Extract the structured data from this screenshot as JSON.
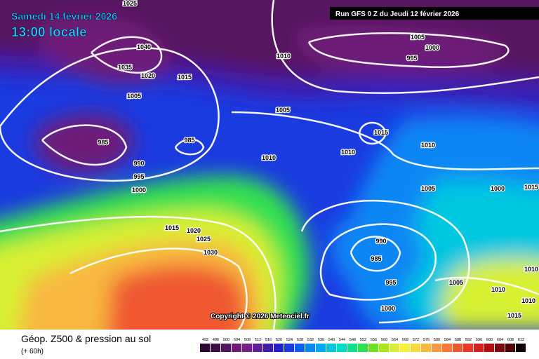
{
  "header": {
    "date": "Samedi 14 février 2026",
    "time": "13:00 locale",
    "run": "Run GFS 0 Z du Jeudi 12 février 2026"
  },
  "map": {
    "isobar_labels": [
      1025,
      1040,
      1035,
      1020,
      1015,
      1005,
      1010,
      1005,
      1000,
      995,
      1005,
      1015,
      1010,
      1010,
      985,
      985,
      1010,
      990,
      995,
      1000,
      1005,
      1000,
      1015,
      1020,
      1025,
      1030,
      990,
      985,
      995,
      1005,
      1010,
      1000,
      1010,
      1010,
      1015,
      1015
    ]
  },
  "copyright": "Copyright © 2026 Meteociel.fr",
  "footer": {
    "title": "Géop. Z500 & pression au sol",
    "lead": "(+ 60h)"
  },
  "legend": {
    "values": [
      492,
      496,
      500,
      504,
      508,
      512,
      516,
      520,
      524,
      528,
      532,
      536,
      540,
      544,
      548,
      552,
      556,
      560,
      564,
      568,
      572,
      576,
      580,
      584,
      588,
      592,
      596,
      600,
      604,
      608,
      612
    ],
    "colors": [
      "#2a0a2e",
      "#3d0f45",
      "#55145e",
      "#6e1a78",
      "#7a1f8a",
      "#5b1e9a",
      "#3c1fb0",
      "#2222c8",
      "#1a3be0",
      "#1060f0",
      "#0a86f5",
      "#00a8f0",
      "#00c8e0",
      "#00dcc0",
      "#10e090",
      "#30e050",
      "#70e020",
      "#a8e820",
      "#d8f030",
      "#f8f040",
      "#f8d840",
      "#f8b840",
      "#f89840",
      "#f87838",
      "#f05830",
      "#e83828",
      "#d82020",
      "#b01010",
      "#800808",
      "#500404",
      "#100000"
    ]
  }
}
